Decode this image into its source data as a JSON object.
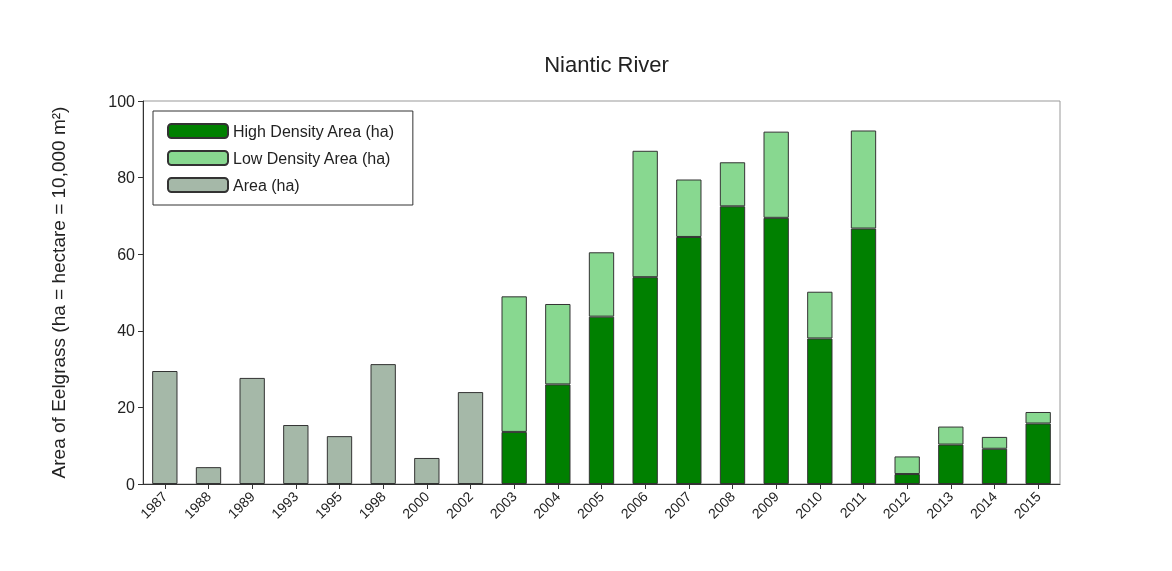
{
  "chart_data": {
    "type": "bar",
    "title": "Niantic River",
    "ylabel": "Area of Eelgrass (ha = hectare = 10,000 m²)",
    "categories": [
      "1987",
      "1988",
      "1989",
      "1993",
      "1995",
      "1998",
      "2000",
      "2002",
      "2003",
      "2004",
      "2005",
      "2006",
      "2007",
      "2008",
      "2009",
      "2010",
      "2011",
      "2012",
      "2013",
      "2014",
      "2015"
    ],
    "stacked": true,
    "series": [
      {
        "name": "High Density Area (ha)",
        "color": "#008000",
        "values": [
          null,
          null,
          null,
          null,
          null,
          null,
          null,
          null,
          13.6,
          26,
          43.7,
          54,
          64.5,
          72.5,
          69.5,
          38,
          66.7,
          2.6,
          10.3,
          9.2,
          15.8
        ]
      },
      {
        "name": "Low Density Area (ha)",
        "color": "#88d890",
        "values": [
          null,
          null,
          null,
          null,
          null,
          null,
          null,
          null,
          35.4,
          21,
          16.8,
          33,
          15,
          11.5,
          22.5,
          12.2,
          25.6,
          4.6,
          4.7,
          3.1,
          3
        ]
      },
      {
        "name": "Area (ha)",
        "color": "#a5b8a8",
        "values": [
          29.5,
          4.4,
          27.7,
          15.4,
          12.5,
          31.3,
          6.8,
          24,
          null,
          null,
          null,
          null,
          null,
          null,
          null,
          null,
          null,
          null,
          null,
          null,
          null
        ]
      }
    ],
    "ylim": [
      0,
      100
    ],
    "yticks": [
      0,
      20,
      40,
      60,
      80,
      100
    ],
    "grid": false,
    "legend": "top left"
  }
}
